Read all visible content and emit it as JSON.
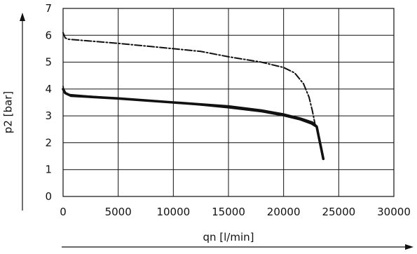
{
  "chart_data": {
    "type": "line",
    "xlabel": "qn [l/min]",
    "ylabel": "p2 [bar]",
    "xlim": [
      0,
      30000
    ],
    "ylim": [
      0,
      7
    ],
    "x_ticks": [
      0,
      5000,
      10000,
      15000,
      20000,
      25000,
      30000
    ],
    "y_ticks": [
      0,
      1,
      2,
      3,
      4,
      5,
      6,
      7
    ],
    "grid": true,
    "series": [
      {
        "style": "dash-dot",
        "points": [
          [
            0,
            6.1
          ],
          [
            200,
            5.9
          ],
          [
            500,
            5.85
          ],
          [
            2000,
            5.8
          ],
          [
            5000,
            5.7
          ],
          [
            7500,
            5.6
          ],
          [
            10000,
            5.5
          ],
          [
            12500,
            5.4
          ],
          [
            15000,
            5.2
          ],
          [
            18000,
            5.0
          ],
          [
            20000,
            4.8
          ],
          [
            21000,
            4.6
          ],
          [
            21800,
            4.2
          ],
          [
            22300,
            3.7
          ],
          [
            22600,
            3.2
          ],
          [
            22800,
            2.8
          ],
          [
            22900,
            2.6
          ]
        ]
      },
      {
        "style": "solid",
        "points": [
          [
            0,
            4.1
          ],
          [
            100,
            3.9
          ],
          [
            500,
            3.8
          ],
          [
            5000,
            3.65
          ],
          [
            10000,
            3.5
          ],
          [
            15000,
            3.3
          ],
          [
            18000,
            3.15
          ],
          [
            20000,
            3.0
          ],
          [
            21500,
            2.85
          ],
          [
            22500,
            2.7
          ],
          [
            22900,
            2.6
          ]
        ]
      },
      {
        "style": "solid-bold",
        "points": [
          [
            0,
            4.0
          ],
          [
            200,
            3.85
          ],
          [
            700,
            3.75
          ],
          [
            5000,
            3.65
          ],
          [
            10000,
            3.5
          ],
          [
            15000,
            3.35
          ],
          [
            18000,
            3.2
          ],
          [
            20000,
            3.05
          ],
          [
            21500,
            2.9
          ],
          [
            22600,
            2.75
          ],
          [
            23000,
            2.6
          ],
          [
            23200,
            2.2
          ],
          [
            23400,
            1.8
          ],
          [
            23600,
            1.4
          ]
        ]
      }
    ]
  }
}
